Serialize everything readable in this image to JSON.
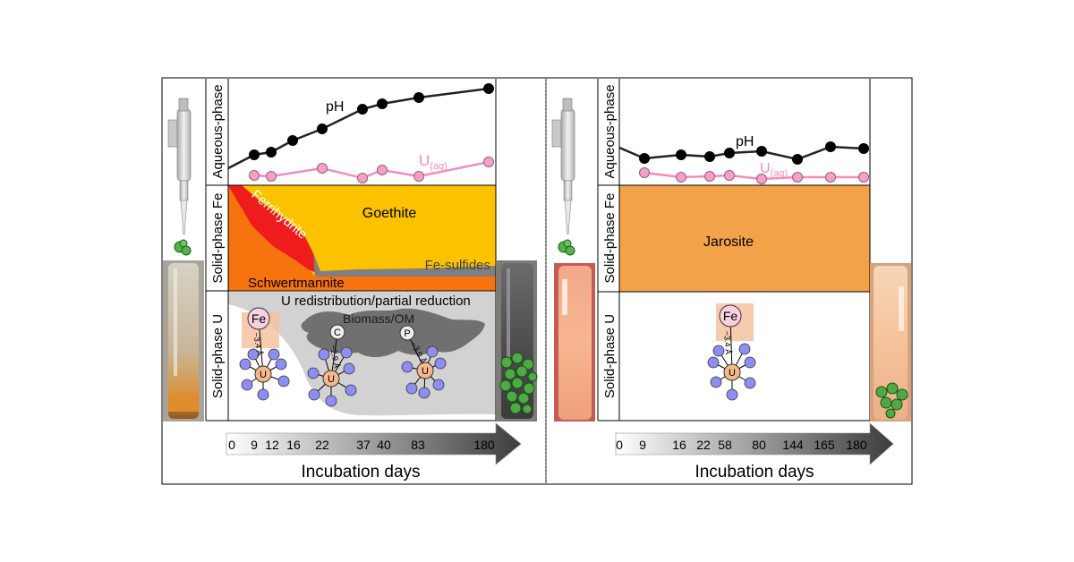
{
  "labels": {
    "aqueous": "Aqueous-phase",
    "solid_fe": "Solid-phase Fe",
    "solid_u": "Solid-phase U",
    "incubation": "Incubation days"
  },
  "left": {
    "ph_label": "pH",
    "u_label_main": "U",
    "u_label_sub": "(aq)",
    "goethite": "Goethite",
    "ferrihydrite": "Ferrihydrite",
    "fe_sulfides": "Fe-sulfides",
    "schwertmannite": "Schwertmannite",
    "u_redistribution": "U redistribution/partial reduction",
    "biomass": "Biomass/OM",
    "fe_atom": "Fe",
    "u_atom": "U",
    "c_atom": "C",
    "p_atom": "P",
    "dist_fe": "~3.4 Å",
    "dist_c": "~2.9 Å",
    "dist_p": "~3.9 Å",
    "days": [
      "0",
      "9",
      "12",
      "16",
      "22",
      "37",
      "40",
      "83",
      "180"
    ],
    "ph_series": [
      0,
      9,
      12,
      16,
      22,
      37,
      40,
      83,
      180
    ],
    "u_series": [
      9,
      12,
      22,
      37,
      40,
      83,
      180
    ]
  },
  "right": {
    "ph_label": "pH",
    "u_label_main": "U",
    "u_label_sub": "(aq)",
    "jarosite": "Jarosite",
    "fe_atom": "Fe",
    "u_atom": "U",
    "dist_fe": "~3.4 Å",
    "days": [
      "0",
      "9",
      "16",
      "22",
      "58",
      "80",
      "144",
      "165",
      "180"
    ],
    "ph_series": [
      9,
      16,
      22,
      58,
      80,
      144,
      165,
      180
    ],
    "u_series": [
      9,
      16,
      22,
      58,
      80,
      144,
      165,
      180
    ]
  },
  "colors": {
    "goethite": "#fcc200",
    "ferrihydrite": "#ee1c1c",
    "schwertmannite": "#f7730e",
    "fe_sulfides": "#7f7f7f",
    "jarosite": "#f4a24a",
    "biomass": "#707070",
    "u_region": "#d2d2d2",
    "ph_marker": "#000000",
    "u_marker": "#f4a0c8",
    "u_line": "#f28cc0",
    "u_atom": "#f6b88a",
    "fe_atom": "#f8d2e2",
    "ligand": "#8e8ef2"
  }
}
